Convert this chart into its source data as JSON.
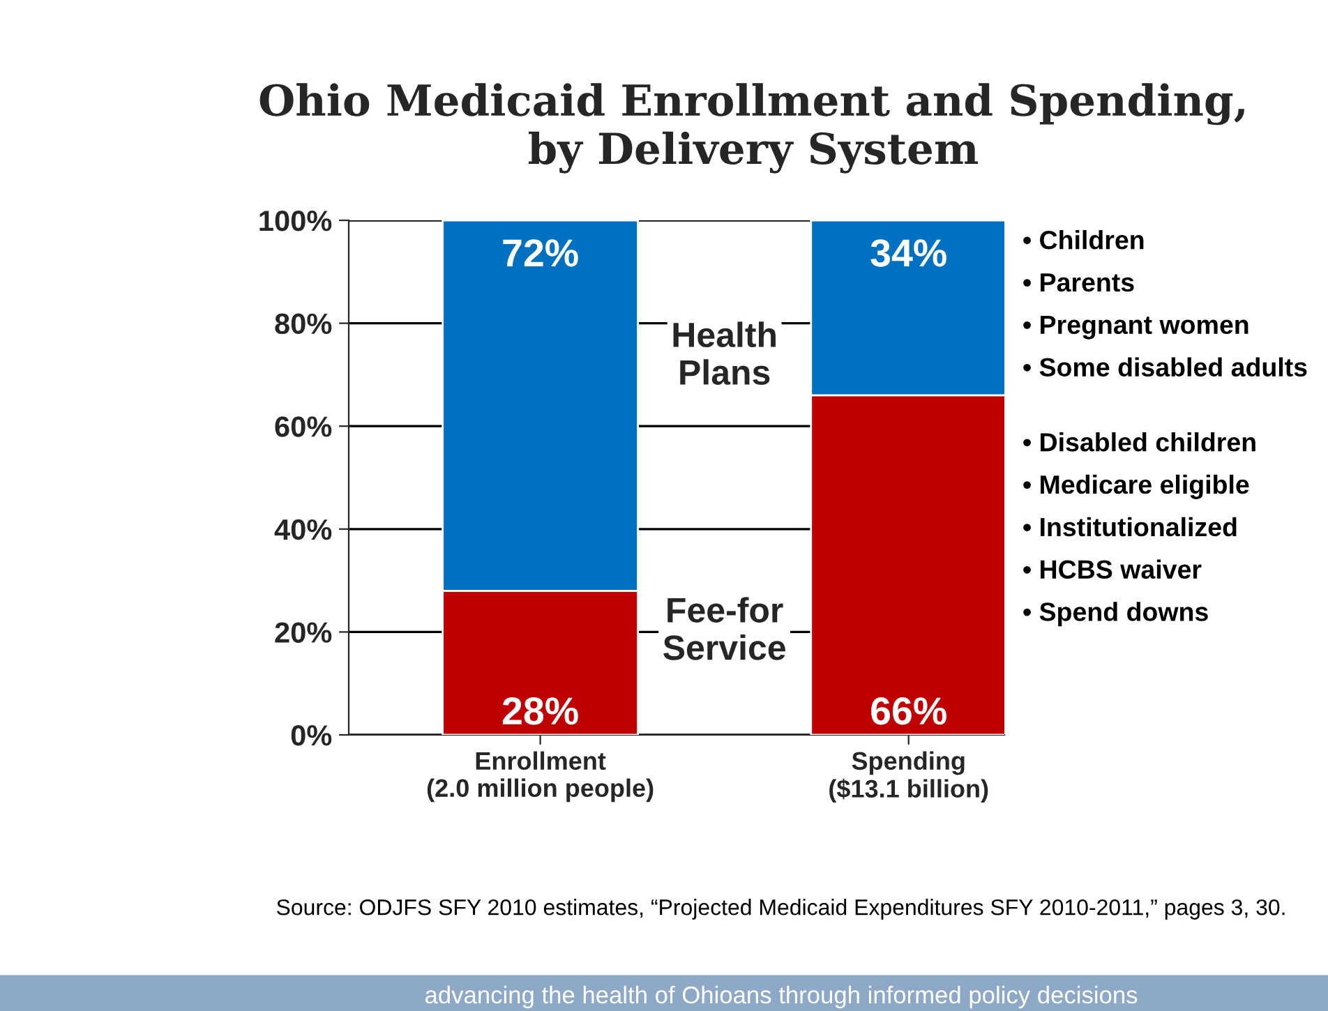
{
  "chart_data": {
    "type": "bar",
    "stacked": true,
    "title": "Ohio Medicaid Enrollment and Spending,\nby Delivery System",
    "categories": [
      "Enrollment\n(2.0 million people)",
      "Spending\n($13.1 billion)"
    ],
    "series": [
      {
        "name": "Fee-for\nService",
        "color": "#c00000",
        "values": [
          28,
          66
        ],
        "value_labels": [
          "28%",
          "66%"
        ]
      },
      {
        "name": "Health\nPlans",
        "color": "#0070c0",
        "values": [
          72,
          34
        ],
        "value_labels": [
          "72%",
          "34%"
        ]
      }
    ],
    "ylim": [
      0,
      100
    ],
    "yticks": [
      {
        "value": 0,
        "label": "0%"
      },
      {
        "value": 20,
        "label": "20%"
      },
      {
        "value": 40,
        "label": "40%"
      },
      {
        "value": 60,
        "label": "60%"
      },
      {
        "value": 80,
        "label": "80%"
      },
      {
        "value": 100,
        "label": "100%"
      }
    ],
    "grid": "y",
    "legend": false,
    "annotations": [
      "• Children\n• Parents\n• Pregnant women\n• Some disabled adults",
      "• Disabled children\n• Medicare eligible\n• Institutionalized\n• HCBS waiver\n• Spend downs",
      "Source: ODJFS SFY 2010 estimates, “Projected Medicaid Expenditures SFY 2010-2011,” pages 3, 30.",
      "advancing the health of Ohioans through informed policy decisions"
    ]
  }
}
